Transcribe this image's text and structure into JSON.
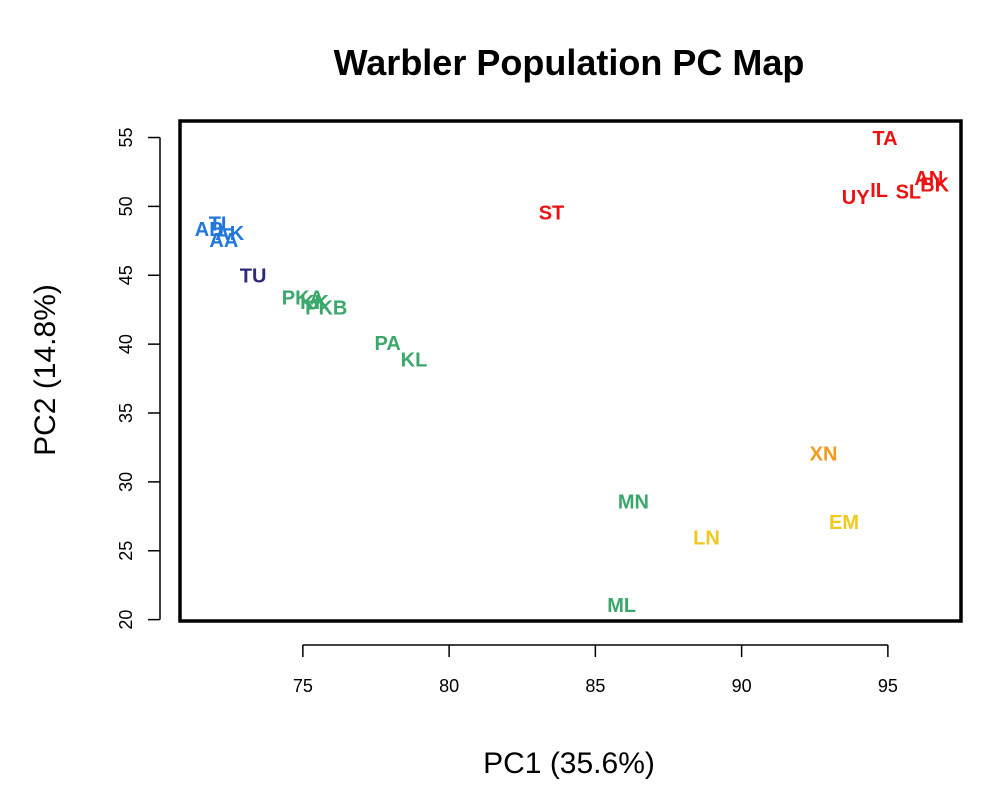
{
  "chart_data": {
    "type": "scatter",
    "title": "Warbler Population PC Map",
    "xlabel": "PC1 (35.6%)",
    "ylabel": "PC2 (14.8%)",
    "xlim": [
      70.8,
      97.5
    ],
    "ylim": [
      19.9,
      56.2
    ],
    "xticks": [
      75,
      80,
      85,
      90,
      95
    ],
    "yticks": [
      20,
      25,
      30,
      35,
      40,
      45,
      50,
      55
    ],
    "grid": false,
    "colors": {
      "red": "#ee1111",
      "blue": "#2277dd",
      "navy": "#2e2a7a",
      "green": "#3aa86a",
      "yellow": "#f2c81e",
      "orange": "#f29a1a"
    },
    "points": [
      {
        "label": "TA",
        "x": 94.9,
        "y": 54.9,
        "color": "red"
      },
      {
        "label": "AN",
        "x": 96.4,
        "y": 52.0,
        "color": "red"
      },
      {
        "label": "BK",
        "x": 96.6,
        "y": 51.5,
        "color": "red"
      },
      {
        "label": "SL",
        "x": 95.7,
        "y": 51.0,
        "color": "red"
      },
      {
        "label": "IL",
        "x": 94.7,
        "y": 51.1,
        "color": "red"
      },
      {
        "label": "UY",
        "x": 93.9,
        "y": 50.6,
        "color": "red"
      },
      {
        "label": "ST",
        "x": 83.5,
        "y": 49.5,
        "color": "red"
      },
      {
        "label": "TL",
        "x": 72.2,
        "y": 48.7,
        "color": "blue"
      },
      {
        "label": "AB",
        "x": 71.8,
        "y": 48.3,
        "color": "blue"
      },
      {
        "label": "AK",
        "x": 72.5,
        "y": 48.0,
        "color": "blue"
      },
      {
        "label": "AA",
        "x": 72.3,
        "y": 47.5,
        "color": "blue"
      },
      {
        "label": "TU",
        "x": 73.3,
        "y": 44.9,
        "color": "navy"
      },
      {
        "label": "PKA",
        "x": 75.0,
        "y": 43.3,
        "color": "green"
      },
      {
        "label": "KK",
        "x": 75.4,
        "y": 43.0,
        "color": "green"
      },
      {
        "label": "PKB",
        "x": 75.8,
        "y": 42.6,
        "color": "green"
      },
      {
        "label": "PA",
        "x": 77.9,
        "y": 40.0,
        "color": "green"
      },
      {
        "label": "KL",
        "x": 78.8,
        "y": 38.8,
        "color": "green"
      },
      {
        "label": "MN",
        "x": 86.3,
        "y": 28.5,
        "color": "green"
      },
      {
        "label": "ML",
        "x": 85.9,
        "y": 21.0,
        "color": "green"
      },
      {
        "label": "XN",
        "x": 92.8,
        "y": 32.0,
        "color": "orange"
      },
      {
        "label": "EM",
        "x": 93.5,
        "y": 27.0,
        "color": "yellow"
      },
      {
        "label": "LN",
        "x": 88.8,
        "y": 25.9,
        "color": "yellow"
      }
    ]
  }
}
